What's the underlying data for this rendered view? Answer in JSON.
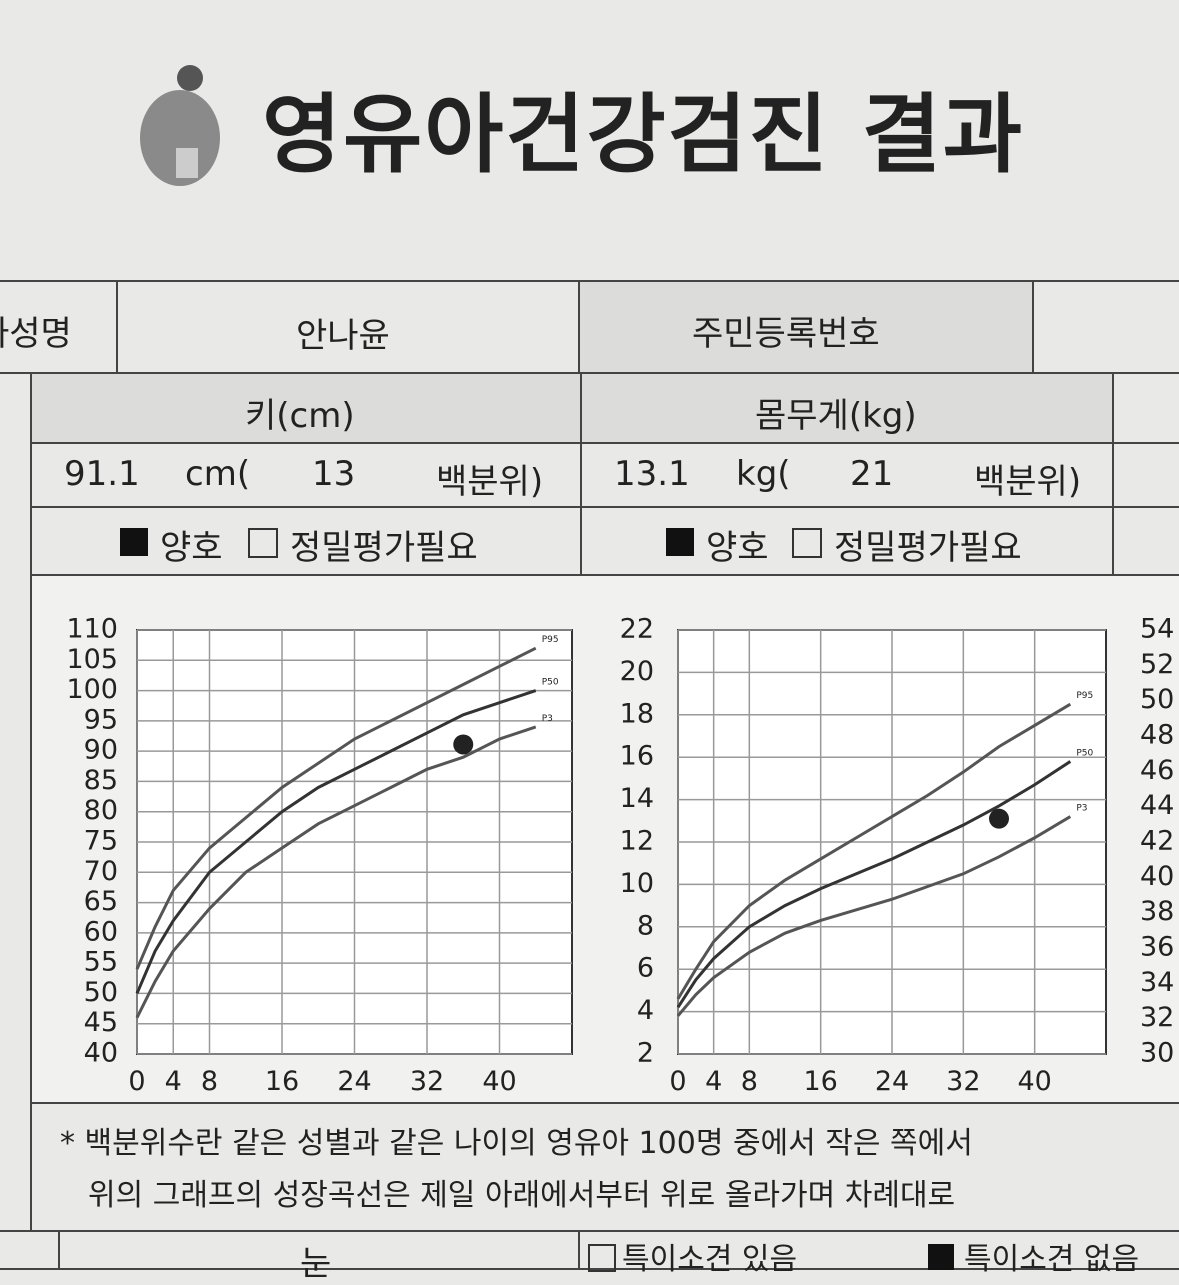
{
  "header": {
    "title": "영유아건강검진 결과"
  },
  "table": {
    "name_label": "자성명",
    "name_value": "안나윤",
    "id_label": "주민등록번호",
    "height_header": "키(cm)",
    "weight_header": "몸무게(kg)",
    "height_value": "91.1",
    "height_unit": "cm(",
    "height_percentile": "13",
    "percentile_label": "백분위)",
    "weight_value": "13.1",
    "weight_unit": "kg(",
    "weight_percentile": "21",
    "good": "양호",
    "needs_eval": "정밀평가필요",
    "note_1": "* 백분위수란 같은 성별과 같은 나이의 영유아 100명 중에서 작은 쪽에서",
    "note_2": "위의 그래프의 성장곡선은 제일 아래에서부터 위로 올라가며 차례대로",
    "eye_label": "눈",
    "finding_yes": "특이소견 있음",
    "finding_no": "특이소견 없음"
  },
  "chart_data": [
    {
      "type": "line",
      "x": [
        0,
        2,
        4,
        8,
        12,
        16,
        20,
        24,
        28,
        32,
        36,
        40,
        44
      ],
      "xlim": [
        0,
        48
      ],
      "xticks": [
        0,
        4,
        8,
        16,
        24,
        32,
        40
      ],
      "ylim": [
        40,
        110
      ],
      "yticks": [
        40,
        45,
        50,
        55,
        60,
        65,
        70,
        75,
        80,
        85,
        90,
        95,
        100,
        105,
        110
      ],
      "grid": true,
      "series": [
        {
          "name": "P95",
          "color": "#555555",
          "values": [
            54,
            61,
            67,
            74,
            79,
            84,
            88,
            92,
            95,
            98,
            101,
            104,
            107
          ]
        },
        {
          "name": "P50",
          "color": "#333333",
          "values": [
            50,
            57,
            62,
            70,
            75,
            80,
            84,
            87,
            90,
            93,
            96,
            98,
            100
          ]
        },
        {
          "name": "P3",
          "color": "#555555",
          "values": [
            46,
            52,
            57,
            64,
            70,
            74,
            78,
            81,
            84,
            87,
            89,
            92,
            94
          ]
        }
      ],
      "marker": {
        "x": 36,
        "y": 91.1,
        "color": "#222222"
      }
    },
    {
      "type": "line",
      "x": [
        0,
        2,
        4,
        8,
        12,
        16,
        20,
        24,
        28,
        32,
        36,
        40,
        44
      ],
      "xlim": [
        0,
        48
      ],
      "xticks": [
        0,
        4,
        8,
        16,
        24,
        32,
        40
      ],
      "ylim": [
        2,
        22
      ],
      "yticks": [
        2,
        4,
        6,
        8,
        10,
        12,
        14,
        16,
        18,
        20,
        22
      ],
      "grid": true,
      "series": [
        {
          "name": "P95",
          "color": "#555555",
          "values": [
            4.6,
            6,
            7.3,
            9,
            10.2,
            11.2,
            12.2,
            13.2,
            14.2,
            15.3,
            16.5,
            17.5,
            18.5
          ]
        },
        {
          "name": "P50",
          "color": "#333333",
          "values": [
            4.2,
            5.5,
            6.5,
            8,
            9,
            9.8,
            10.5,
            11.2,
            12,
            12.8,
            13.7,
            14.7,
            15.8
          ]
        },
        {
          "name": "P3",
          "color": "#555555",
          "values": [
            3.8,
            4.8,
            5.6,
            6.8,
            7.7,
            8.3,
            8.8,
            9.3,
            9.9,
            10.5,
            11.3,
            12.2,
            13.2
          ]
        }
      ],
      "marker": {
        "x": 36,
        "y": 13.1,
        "color": "#222222"
      }
    },
    {
      "type": "axis",
      "ylim": [
        30,
        54
      ],
      "yticks": [
        30,
        32,
        34,
        36,
        38,
        40,
        42,
        44,
        46,
        48,
        50,
        52,
        54
      ]
    }
  ]
}
